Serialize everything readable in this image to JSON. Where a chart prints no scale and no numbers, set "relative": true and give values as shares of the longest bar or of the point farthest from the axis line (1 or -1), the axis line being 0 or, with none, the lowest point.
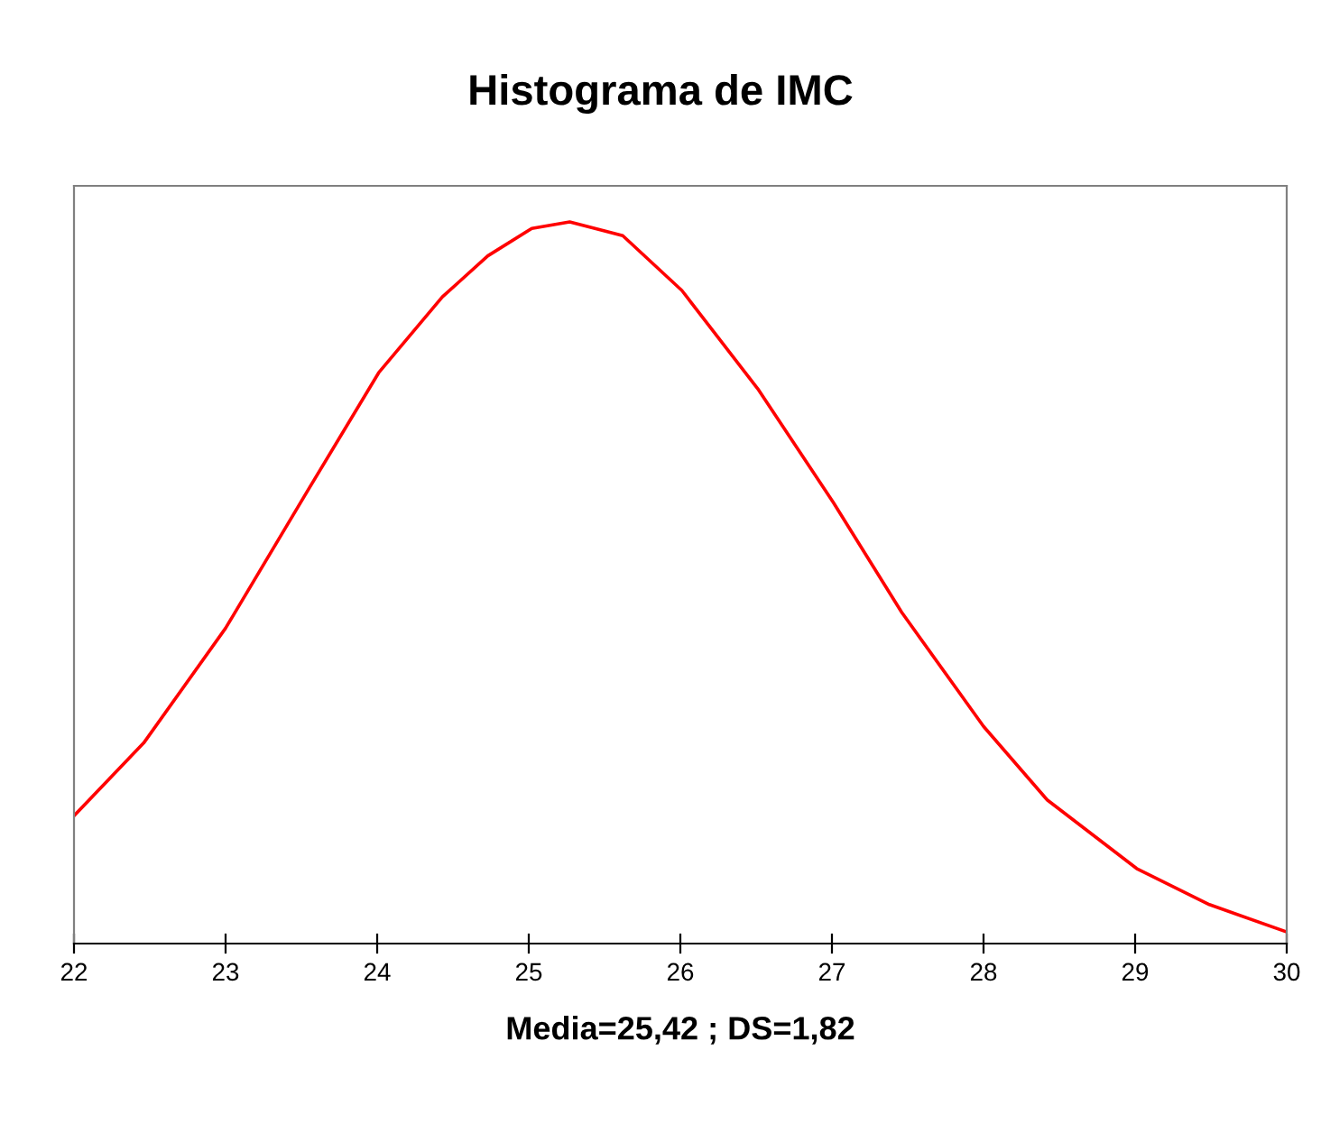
{
  "chart_data": {
    "type": "line",
    "title": "Histograma de IMC",
    "xlabel": "Media=25,42 ; DS=1,82",
    "relative": true,
    "x": [
      22,
      22.46,
      23,
      23.54,
      24.01,
      24.43,
      24.73,
      25.02,
      25.27,
      25.62,
      26.01,
      26.51,
      27.01,
      27.46,
      28.0,
      28.42,
      29.01,
      29.49,
      30
    ],
    "series": [
      {
        "color": "#ff0000",
        "values": [
          0.177,
          0.278,
          0.437,
          0.627,
          0.791,
          0.896,
          0.953,
          0.991,
          1.0,
          0.981,
          0.905,
          0.769,
          0.611,
          0.459,
          0.301,
          0.199,
          0.104,
          0.054,
          0.016
        ]
      }
    ],
    "xlim": [
      22,
      30
    ],
    "xticks": [
      22,
      23,
      24,
      25,
      26,
      27,
      28,
      29,
      30
    ],
    "grid": false,
    "legend": false,
    "marker": "none",
    "line_style": "solid"
  }
}
